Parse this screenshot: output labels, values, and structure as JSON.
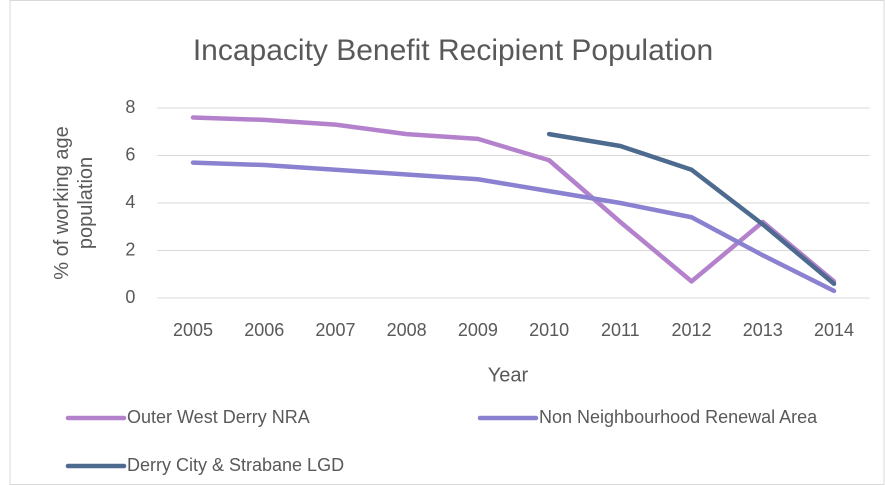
{
  "chart_data": {
    "type": "line",
    "title": "Incapacity Benefit Recipient Population",
    "x_label": "Year",
    "y_label": "% of working age population",
    "categories": [
      "2005",
      "2006",
      "2007",
      "2008",
      "2009",
      "2010",
      "2011",
      "2012",
      "2013",
      "2014"
    ],
    "series": [
      {
        "name": "Outer West Derry NRA",
        "color": "#b482cc",
        "values": [
          7.6,
          7.5,
          7.3,
          6.9,
          6.7,
          5.8,
          3.2,
          0.7,
          3.2,
          0.7
        ]
      },
      {
        "name": "Non Neighbourhood Renewal Area",
        "color": "#8a82d0",
        "values": [
          5.7,
          5.6,
          5.4,
          5.2,
          5.0,
          4.5,
          4.0,
          3.4,
          1.8,
          0.3
        ]
      },
      {
        "name": "Derry City & Strabane LGD",
        "color": "#4d6a8f",
        "values": [
          null,
          null,
          null,
          null,
          null,
          6.9,
          6.4,
          5.4,
          3.1,
          0.6
        ]
      }
    ],
    "ylim": [
      0,
      8
    ],
    "yticks": [
      0,
      2,
      4,
      6,
      8
    ],
    "grid": true,
    "legend": "bottom"
  }
}
